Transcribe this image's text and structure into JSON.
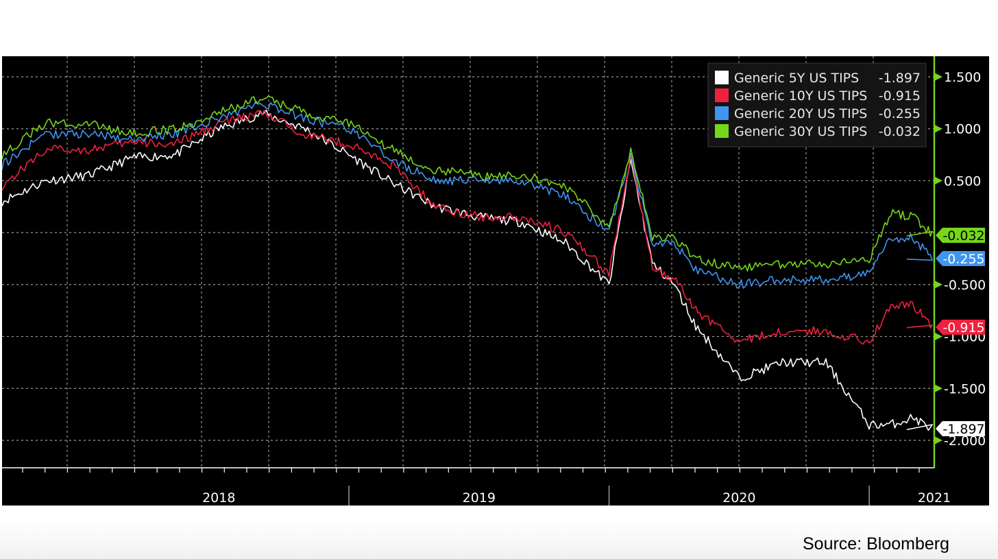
{
  "source": "Source: Bloomberg",
  "chart_data": {
    "type": "line",
    "title": "",
    "xlabel": "",
    "ylabel": "",
    "ylim": [
      -2.25,
      1.75
    ],
    "y_ticks": [
      "1.500",
      "1.000",
      "0.500",
      "-0.500",
      "-1.000",
      "-1.500",
      "-2.000"
    ],
    "y_tick_values": [
      1.5,
      1.0,
      0.5,
      -0.5,
      -1.0,
      -1.5,
      -2.0
    ],
    "x_range": [
      "2017-09",
      "2021-04"
    ],
    "x_tick_labels": [
      {
        "label": "2018",
        "x": "2018-07"
      },
      {
        "label": "2019",
        "x": "2019-07"
      },
      {
        "label": "2020",
        "x": "2020-07"
      },
      {
        "label": "2021",
        "x": "2021-04"
      }
    ],
    "x_year_separators": [
      "2019-01",
      "2020-01",
      "2021-01"
    ],
    "grid": true,
    "legend_position": "top-right",
    "x": [
      "2017-09",
      "2017-11",
      "2018-01",
      "2018-03",
      "2018-05",
      "2018-07",
      "2018-09",
      "2018-11",
      "2019-01",
      "2019-03",
      "2019-05",
      "2019-07",
      "2019-09",
      "2019-11",
      "2020-01",
      "2020-02",
      "2020-03",
      "2020-04",
      "2020-05",
      "2020-07",
      "2020-09",
      "2020-11",
      "2021-01",
      "2021-02",
      "2021-03",
      "2021-04"
    ],
    "series": [
      {
        "name": "Generic 5Y US TIPS",
        "last": "-1.897",
        "color": "#ffffff",
        "values": [
          0.3,
          0.5,
          0.55,
          0.72,
          0.75,
          1.0,
          1.15,
          1.0,
          0.75,
          0.48,
          0.25,
          0.15,
          0.1,
          -0.1,
          -0.5,
          0.7,
          -0.3,
          -0.5,
          -0.9,
          -1.4,
          -1.25,
          -1.25,
          -1.85,
          -1.85,
          -1.78,
          -1.897
        ]
      },
      {
        "name": "Generic 10Y US TIPS",
        "last": "-0.915",
        "color": "#f0213f",
        "values": [
          0.45,
          0.8,
          0.8,
          0.87,
          0.85,
          1.05,
          1.15,
          0.95,
          0.85,
          0.65,
          0.25,
          0.15,
          0.15,
          0.0,
          -0.4,
          0.75,
          -0.35,
          -0.45,
          -0.75,
          -1.05,
          -0.95,
          -0.95,
          -1.05,
          -0.7,
          -0.7,
          -0.915
        ]
      },
      {
        "name": "Generic 20Y US TIPS",
        "last": "-0.255",
        "color": "#3f95f0",
        "values": [
          0.65,
          0.95,
          0.95,
          0.9,
          0.95,
          1.1,
          1.25,
          1.1,
          1.0,
          0.7,
          0.5,
          0.5,
          0.5,
          0.35,
          0.0,
          0.75,
          -0.1,
          -0.1,
          -0.35,
          -0.5,
          -0.45,
          -0.45,
          -0.4,
          -0.05,
          -0.05,
          -0.255
        ]
      },
      {
        "name": "Generic 30Y US TIPS",
        "last": "-0.032",
        "color": "#76d61a",
        "values": [
          0.75,
          1.05,
          1.05,
          0.95,
          1.0,
          1.15,
          1.3,
          1.15,
          1.05,
          0.8,
          0.6,
          0.55,
          0.55,
          0.45,
          0.05,
          0.8,
          -0.05,
          -0.05,
          -0.25,
          -0.35,
          -0.3,
          -0.3,
          -0.25,
          0.2,
          0.15,
          -0.032
        ]
      }
    ]
  },
  "colors": {
    "background": "#000000",
    "grid": "#d0d0d0",
    "axis": "#76d61a",
    "text": "#ffffff"
  }
}
